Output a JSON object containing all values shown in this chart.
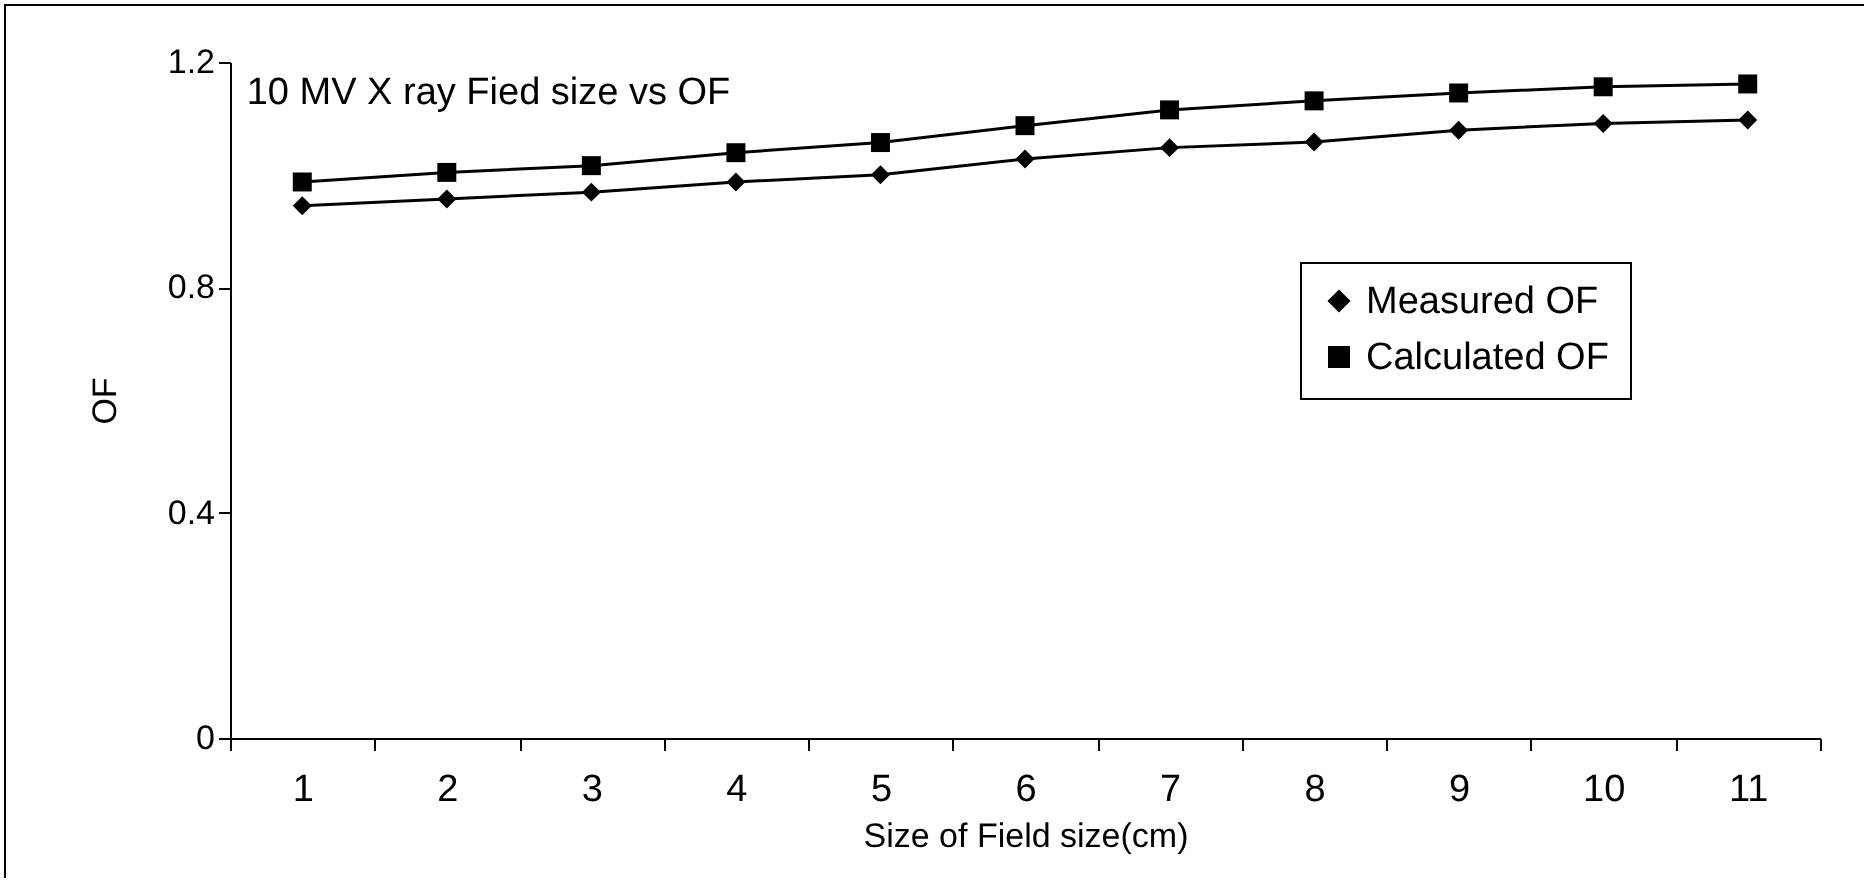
{
  "chart_data": {
    "type": "line",
    "title": "10 MV X ray Fied size vs OF",
    "xlabel": "Size of Field size(cm)",
    "ylabel": "OF",
    "categories": [
      "1",
      "2",
      "3",
      "4",
      "5",
      "6",
      "7",
      "8",
      "9",
      "10",
      "11"
    ],
    "series": [
      {
        "name": "Measured OF",
        "color": "#000000",
        "marker": "diamond",
        "values": [
          0.945,
          0.957,
          0.969,
          0.987,
          1.0,
          1.028,
          1.048,
          1.058,
          1.079,
          1.091,
          1.097
        ]
      },
      {
        "name": "Calculated OF",
        "color": "#000000",
        "marker": "square",
        "values": [
          0.987,
          1.004,
          1.016,
          1.039,
          1.057,
          1.087,
          1.115,
          1.131,
          1.145,
          1.156,
          1.161
        ]
      }
    ],
    "ylim": [
      0,
      1.2
    ],
    "yticks": [
      0,
      0.4,
      0.8,
      1.2
    ],
    "grid": false,
    "legend": "right",
    "line_style": "solid"
  }
}
